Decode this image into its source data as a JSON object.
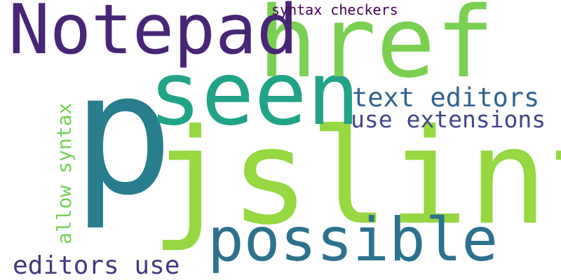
{
  "words": [
    {
      "id": "jslint",
      "text": "jslint",
      "color": "#95d840"
    },
    {
      "id": "p",
      "text": "p",
      "color": "#287d8e"
    },
    {
      "id": "seen",
      "text": "seen",
      "color": "#20a386"
    },
    {
      "id": "href",
      "text": "href",
      "color": "#7ad151"
    },
    {
      "id": "notepad",
      "text": "Notepad",
      "color": "#482677"
    },
    {
      "id": "possible",
      "text": "possible",
      "color": "#2c728e"
    },
    {
      "id": "text_editors",
      "text": "text editors",
      "color": "#33638d"
    },
    {
      "id": "use_extensions",
      "text": "use extensions",
      "color": "#404788"
    },
    {
      "id": "allow_syntax",
      "text": "allow syntax",
      "color": "#75d054"
    },
    {
      "id": "editors_use",
      "text": "editors use",
      "color": "#453781"
    },
    {
      "id": "syntax_checkers",
      "text": "syntax checkers",
      "color": "#440154"
    }
  ]
}
